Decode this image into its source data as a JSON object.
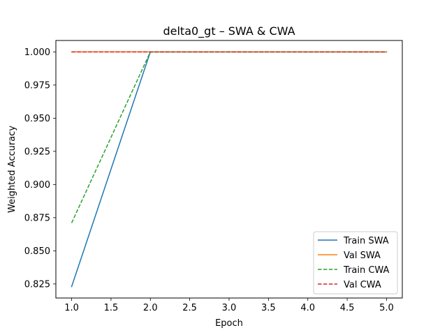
{
  "chart_data": {
    "type": "line",
    "title": "delta0_gt – SWA & CWA",
    "xlabel": "Epoch",
    "ylabel": "Weighted Accuracy",
    "xlim": [
      0.8,
      5.2
    ],
    "ylim": [
      0.8144,
      1.0086
    ],
    "xticks": [
      1.0,
      1.5,
      2.0,
      2.5,
      3.0,
      3.5,
      4.0,
      4.5,
      5.0
    ],
    "xtick_labels": [
      "1.0",
      "1.5",
      "2.0",
      "2.5",
      "3.0",
      "3.5",
      "4.0",
      "4.5",
      "5.0"
    ],
    "yticks": [
      0.825,
      0.85,
      0.875,
      0.9,
      0.925,
      0.95,
      0.975,
      1.0
    ],
    "ytick_labels": [
      "0.825",
      "0.850",
      "0.875",
      "0.900",
      "0.925",
      "0.950",
      "0.975",
      "1.000"
    ],
    "grid": false,
    "legend_position": "lower-right",
    "x": [
      1,
      2,
      3,
      4,
      5
    ],
    "series": [
      {
        "name": "Train SWA",
        "values": [
          0.823,
          1.0,
          1.0,
          1.0,
          1.0
        ],
        "color": "#1f77b4",
        "dash": "solid"
      },
      {
        "name": "Val SWA",
        "values": [
          1.0,
          1.0,
          1.0,
          1.0,
          1.0
        ],
        "color": "#ff7f0e",
        "dash": "solid"
      },
      {
        "name": "Train CWA",
        "values": [
          0.871,
          1.0,
          1.0,
          1.0,
          1.0
        ],
        "color": "#2ca02c",
        "dash": "dashed"
      },
      {
        "name": "Val CWA",
        "values": [
          1.0,
          1.0,
          1.0,
          1.0,
          1.0
        ],
        "color": "#d62728",
        "dash": "dashed"
      }
    ]
  }
}
